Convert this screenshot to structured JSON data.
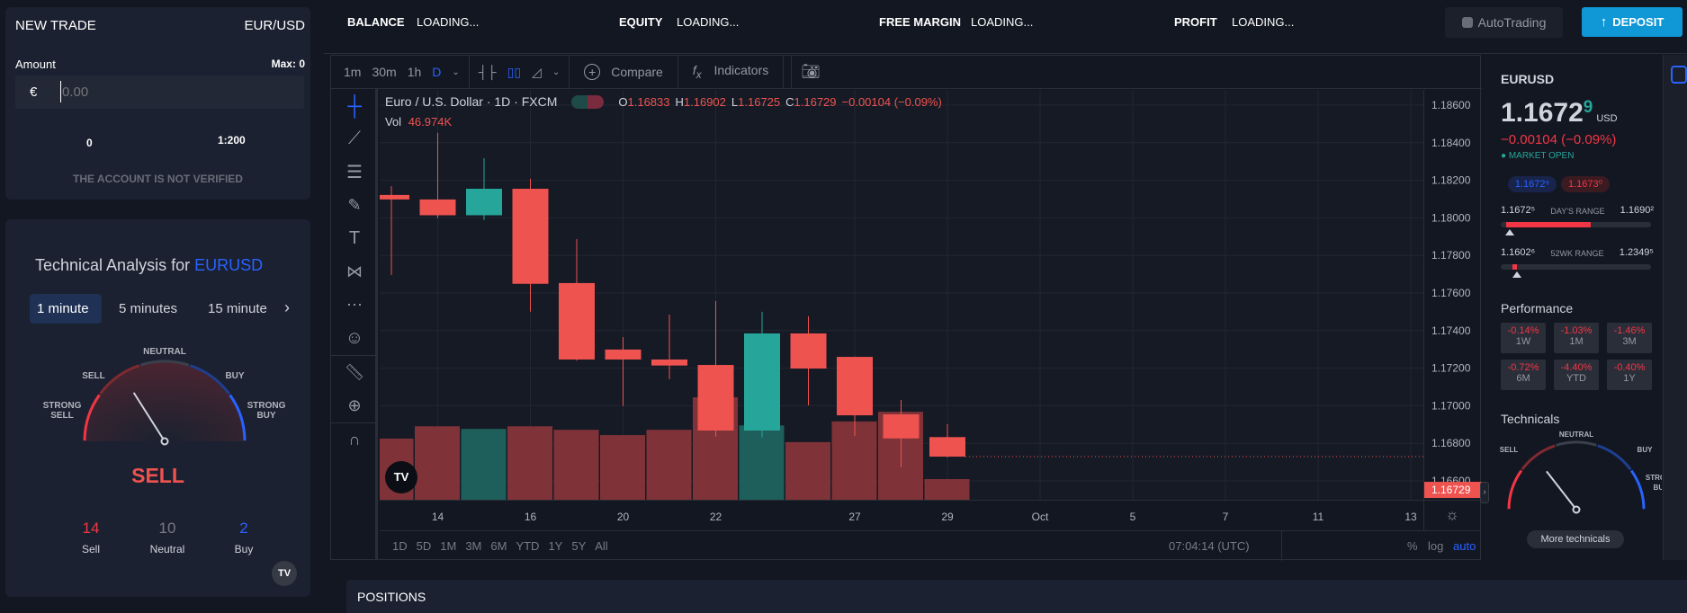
{
  "trade": {
    "title": "NEW TRADE",
    "pair": "EUR/USD",
    "amount_label": "Amount",
    "max_label": "Max: 0",
    "currency_symbol": "€",
    "amount_placeholder": "0.00",
    "leverage_min": "0",
    "leverage": "1:200",
    "notice": "THE ACCOUNT IS NOT VERIFIED"
  },
  "ta": {
    "title": "Technical Analysis for ",
    "symbol": "EURUSD",
    "intervals": [
      "1 minute",
      "5 minutes",
      "15 minute"
    ],
    "active_interval": 0,
    "gauge": {
      "labels": {
        "strong_sell": "STRONG\nSELL",
        "sell": "SELL",
        "neutral": "NEUTRAL",
        "buy": "BUY",
        "strong_buy": "STRONG\nBUY"
      },
      "value": -0.36
    },
    "verdict": "SELL",
    "counts": [
      {
        "n": "14",
        "label": "Sell",
        "color": "#f23645"
      },
      {
        "n": "10",
        "label": "Neutral",
        "color": "#787b86"
      },
      {
        "n": "2",
        "label": "Buy",
        "color": "#2962ff"
      }
    ]
  },
  "topbar": {
    "stats": [
      {
        "k": "BALANCE",
        "v": "LOADING..."
      },
      {
        "k": "EQUITY",
        "v": "LOADING..."
      },
      {
        "k": "FREE MARGIN",
        "v": "LOADING..."
      },
      {
        "k": "PROFIT",
        "v": "LOADING..."
      }
    ],
    "autotrading": "AutoTrading",
    "deposit": "DEPOSIT"
  },
  "chart": {
    "intervals": [
      "1m",
      "30m",
      "1h",
      "D"
    ],
    "active_interval": "D",
    "compare": "Compare",
    "indicators": "Indicators",
    "legend": {
      "name": "Euro / U.S. Dollar · 1D · FXCM",
      "o": "1.16833",
      "h": "1.16902",
      "l": "1.16725",
      "c": "1.16729",
      "chg": "−0.00104 (−0.09%)",
      "vol_label": "Vol",
      "vol": "46.974K"
    },
    "ranges": [
      "1D",
      "5D",
      "1M",
      "3M",
      "6M",
      "YTD",
      "1Y",
      "5Y",
      "All"
    ],
    "time": "07:04:14 (UTC)",
    "pct": "%",
    "log": "log",
    "auto": "auto",
    "last_price_label": "1.16729"
  },
  "chart_data": {
    "type": "candlestick",
    "ylim": [
      1.1655,
      1.1868
    ],
    "y_ticks": [
      "1.18600",
      "1.18400",
      "1.18200",
      "1.18000",
      "1.17800",
      "1.17600",
      "1.17400",
      "1.17200",
      "1.17000",
      "1.16800",
      "1.16600"
    ],
    "x_ticks": [
      {
        "label": "14",
        "day": 1
      },
      {
        "label": "16",
        "day": 3
      },
      {
        "label": "20",
        "day": 5
      },
      {
        "label": "22",
        "day": 7
      },
      {
        "label": "27",
        "day": 10
      },
      {
        "label": "29",
        "day": 12
      },
      {
        "label": "Oct",
        "day": 14
      },
      {
        "label": "5",
        "day": 16
      },
      {
        "label": "7",
        "day": 18
      },
      {
        "label": "11",
        "day": 20
      },
      {
        "label": "13",
        "day": 22
      }
    ],
    "candles": [
      {
        "o": 1.18122,
        "h": 1.18169,
        "l": 1.17696,
        "c": 1.18098,
        "v": 139000
      },
      {
        "o": 1.18098,
        "h": 1.18452,
        "l": 1.17999,
        "c": 1.18014,
        "v": 167000
      },
      {
        "o": 1.18014,
        "h": 1.18318,
        "l": 1.17988,
        "c": 1.18155,
        "v": 161000
      },
      {
        "o": 1.18155,
        "h": 1.18208,
        "l": 1.17501,
        "c": 1.17649,
        "v": 167000
      },
      {
        "o": 1.17653,
        "h": 1.17887,
        "l": 1.1724,
        "c": 1.17246,
        "v": 159000
      },
      {
        "o": 1.17299,
        "h": 1.17365,
        "l": 1.16999,
        "c": 1.17246,
        "v": 147000
      },
      {
        "o": 1.17246,
        "h": 1.17485,
        "l": 1.17142,
        "c": 1.17214,
        "v": 159000
      },
      {
        "o": 1.17217,
        "h": 1.17557,
        "l": 1.16836,
        "c": 1.16868,
        "v": 233000
      },
      {
        "o": 1.16868,
        "h": 1.175,
        "l": 1.16832,
        "c": 1.17385,
        "v": 169000
      },
      {
        "o": 1.17385,
        "h": 1.17476,
        "l": 1.17002,
        "c": 1.17198,
        "v": 131000
      },
      {
        "o": 1.1726,
        "h": 1.17262,
        "l": 1.16839,
        "c": 1.16949,
        "v": 178000
      },
      {
        "o": 1.16954,
        "h": 1.17031,
        "l": 1.16672,
        "c": 1.16826,
        "v": 200000
      },
      {
        "o": 1.16833,
        "h": 1.16902,
        "l": 1.16725,
        "c": 1.16729,
        "v": 46974
      }
    ],
    "last_price": 1.16729,
    "colors": {
      "up": "#26a69a",
      "down": "#ef5350",
      "vol_up": "#1f5f5b",
      "vol_down": "#7f3338"
    }
  },
  "quote": {
    "symbol": "EURUSD",
    "price_main": "1.1672",
    "price_last": "9",
    "currency": "USD",
    "change": "−0.00104 (−0.09%)",
    "status": "MARKET OPEN",
    "bid": "1.1672⁹",
    "ask": "1.1673⁰",
    "day_range": {
      "low": "1.1672⁵",
      "label": "DAY'S RANGE",
      "high": "1.1690²",
      "fill": 0.6,
      "marker": 0.03
    },
    "wk52_range": {
      "low": "1.1602⁶",
      "label": "52WK RANGE",
      "high": "1.2349⁵",
      "fill_from": 0.08,
      "fill_to": 0.11,
      "marker": 0.09
    },
    "performance_title": "Performance",
    "performance": [
      {
        "v": "-0.14%",
        "p": "1W"
      },
      {
        "v": "-1.03%",
        "p": "1M"
      },
      {
        "v": "-1.46%",
        "p": "3M"
      },
      {
        "v": "-0.72%",
        "p": "6M"
      },
      {
        "v": "-4.40%",
        "p": "YTD"
      },
      {
        "v": "-0.40%",
        "p": "1Y"
      }
    ],
    "technicals_title": "Technicals",
    "tech_labels": {
      "sell": "SELL",
      "neutral": "NEUTRAL",
      "buy": "BUY",
      "strong_buy": "STRONG\nBUY"
    },
    "tech_value": -0.42,
    "more": "More technicals"
  },
  "positions": {
    "title": "POSITIONS"
  }
}
